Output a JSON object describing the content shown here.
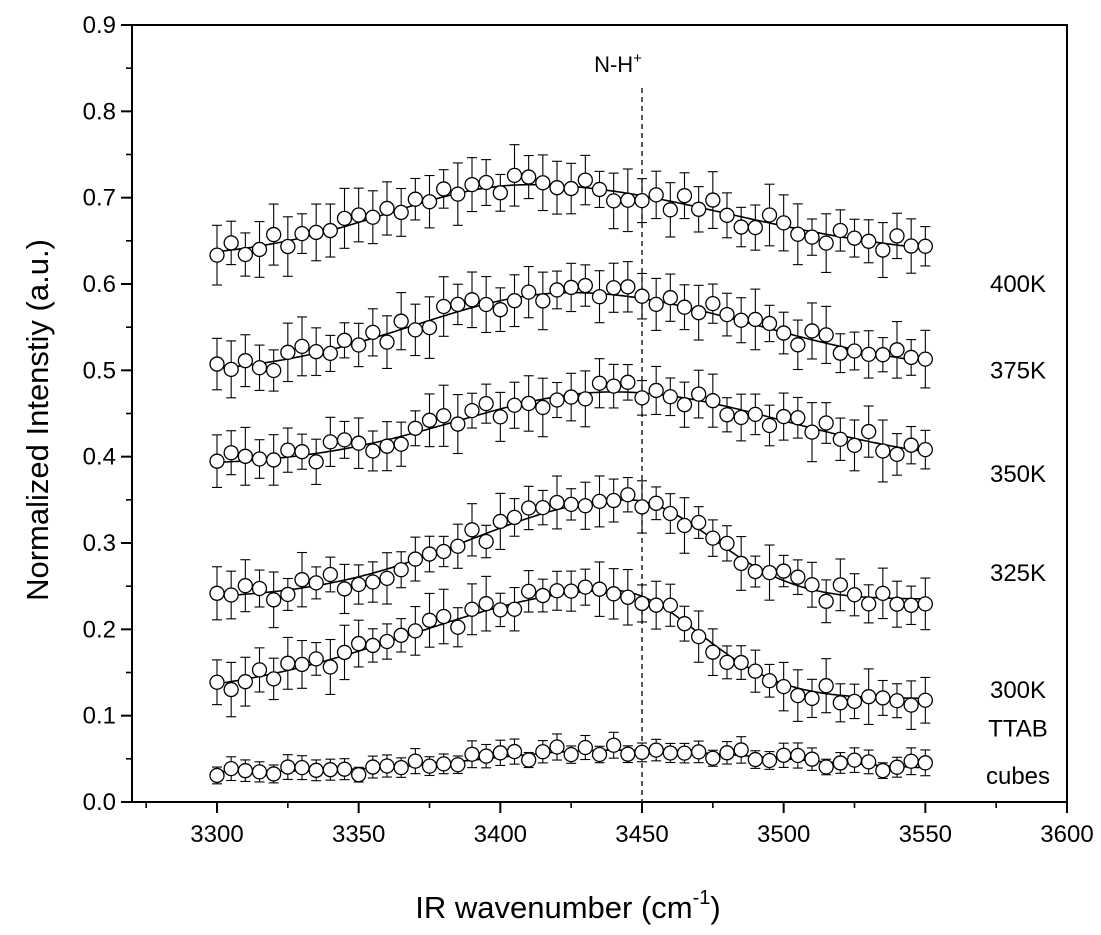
{
  "chart_data": {
    "type": "scatter",
    "xlabel": "IR wavenumber (cm",
    "xlabel_sup": "-1",
    "xlabel_end": ")",
    "ylabel": "Normalized Intenstiy (a.u.)",
    "xlim": [
      3270,
      3600
    ],
    "ylim": [
      0.0,
      0.9
    ],
    "xticks": [
      "3300",
      "3350",
      "3400",
      "3450",
      "3500",
      "3550",
      "3600"
    ],
    "yticks": [
      "0.0",
      "0.1",
      "0.2",
      "0.3",
      "0.4",
      "0.5",
      "0.6",
      "0.7",
      "0.8",
      "0.9"
    ],
    "annotation": {
      "text": "N-H",
      "sup": "+",
      "x": 3450
    },
    "series": [
      {
        "name": "TTAB",
        "name2": "cubes",
        "model": {
          "base": 0.035,
          "amp": 0.025,
          "center": 3440,
          "width": 45,
          "decay": 0.0,
          "tail_sigma": 60
        },
        "err": 0.012,
        "noise": 0.007
      },
      {
        "name": "300K",
        "model": {
          "base": 0.12,
          "amp": 0.125,
          "center": 3440,
          "width": 70,
          "decay": 0.0,
          "tail_sigma": 30
        },
        "err": 0.025,
        "noise": 0.01
      },
      {
        "name": "325K",
        "model": {
          "base": 0.235,
          "amp": 0.115,
          "center": 3445,
          "width": 55,
          "decay": 0.0,
          "tail_sigma": 30
        },
        "err": 0.025,
        "noise": 0.012
      },
      {
        "name": "350K",
        "model": {
          "base": 0.39,
          "amp": 0.085,
          "center": 3440,
          "width": 55,
          "decay": 0.0,
          "tail_sigma": 60
        },
        "err": 0.028,
        "noise": 0.012
      },
      {
        "name": "375K",
        "model": {
          "base": 0.495,
          "amp": 0.095,
          "center": 3425,
          "width": 55,
          "decay": 0.0,
          "tail_sigma": 65
        },
        "err": 0.028,
        "noise": 0.012
      },
      {
        "name": "400K",
        "model": {
          "base": 0.63,
          "amp": 0.085,
          "center": 3410,
          "width": 50,
          "decay": 0.0,
          "tail_sigma": 70
        },
        "err": 0.028,
        "noise": 0.012
      }
    ],
    "x_start": 3300,
    "x_end": 3550,
    "x_step": 5,
    "grid": false,
    "legend": "right"
  }
}
